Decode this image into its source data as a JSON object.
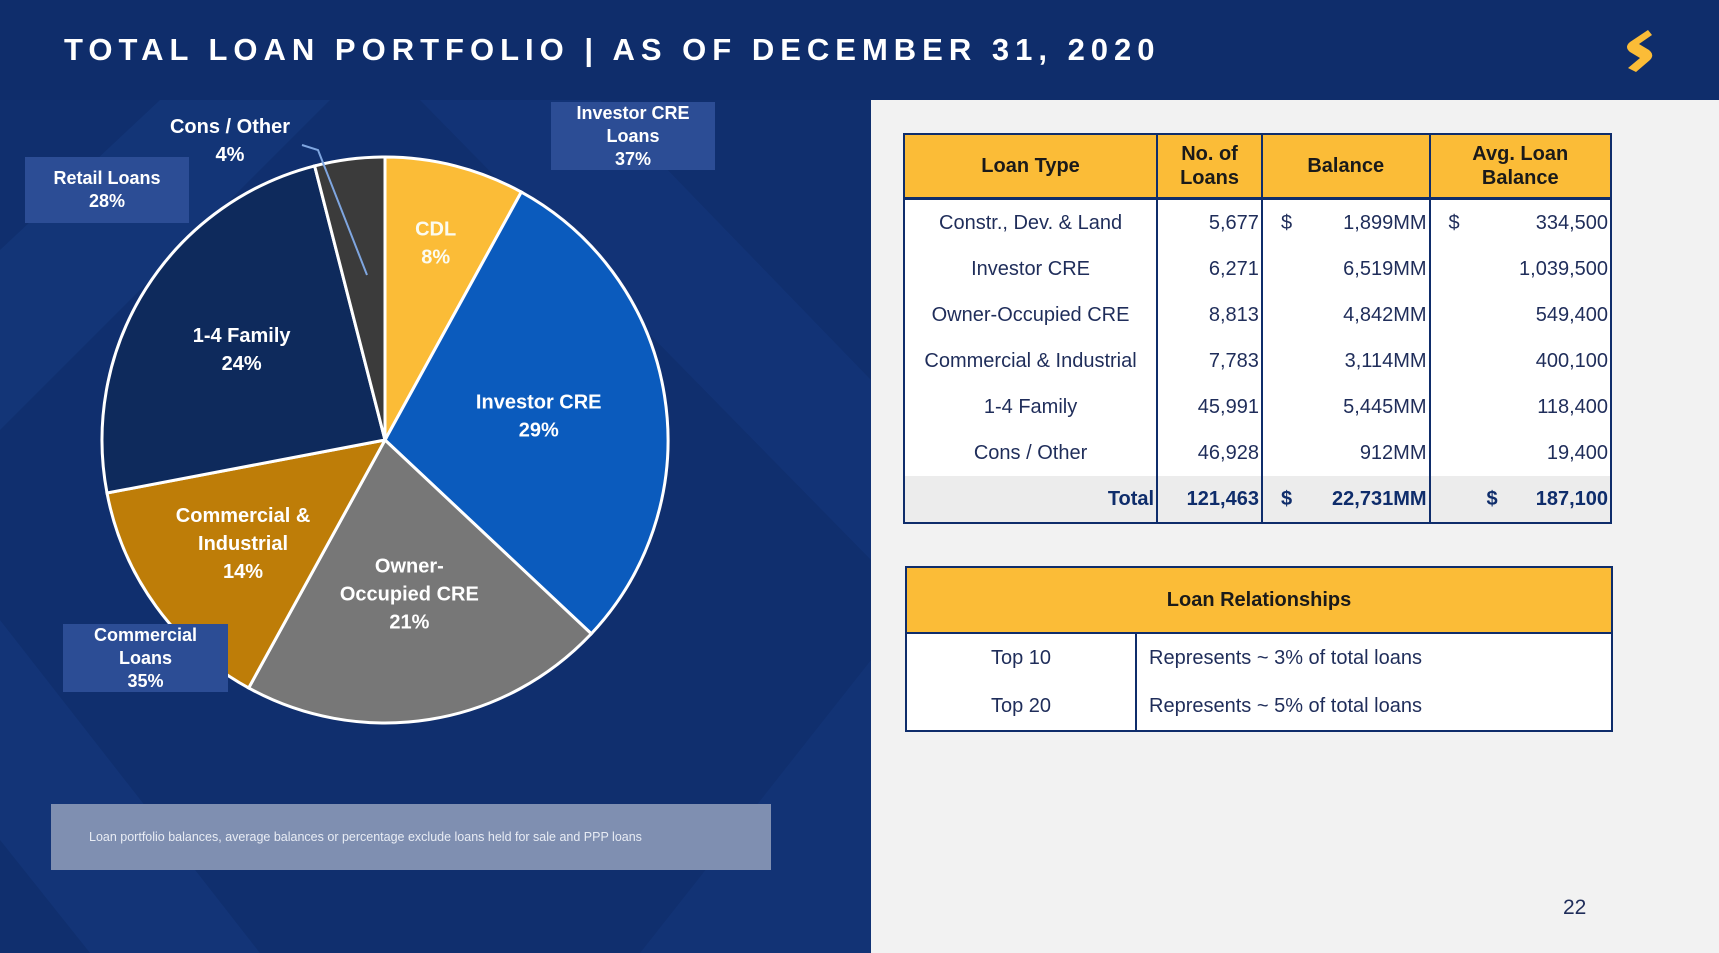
{
  "header": {
    "title": "TOTAL LOAN PORTFOLIO | AS OF DECEMBER 31, 2020"
  },
  "colors": {
    "navy": "#102f6e",
    "cdl": "#fbbc37",
    "investor_cre": "#0b5bbd",
    "owner_occupied_cre": "#777777",
    "commercial_industrial": "#be7d08",
    "one_four_family": "#0e2a5c",
    "cons_other": "#3b3b3b"
  },
  "chart_data": {
    "type": "pie",
    "slices": [
      {
        "label": "CDL",
        "value": 8,
        "pct_label": "8%",
        "color": "#fbbc37",
        "text_color": "#fbfbf0"
      },
      {
        "label": "Investor CRE",
        "value": 29,
        "pct_label": "29%",
        "color": "#0b5bbd",
        "text_color": "#ffffff"
      },
      {
        "label": "Owner-Occupied CRE",
        "lines": [
          "Owner-",
          "Occupied CRE"
        ],
        "value": 21,
        "pct_label": "21%",
        "color": "#777777",
        "text_color": "#ffffff"
      },
      {
        "label": "Commercial & Industrial",
        "lines": [
          "Commercial &",
          "Industrial"
        ],
        "value": 14,
        "pct_label": "14%",
        "color": "#be7d08",
        "text_color": "#ffffff"
      },
      {
        "label": "1-4 Family",
        "value": 24,
        "pct_label": "24%",
        "color": "#0e2a5c",
        "text_color": "#ffffff"
      },
      {
        "label": "Cons / Other",
        "value": 4,
        "pct_label": "4%",
        "color": "#3b3b3b",
        "text_color": "#ffffff"
      }
    ],
    "groups": {
      "retail": {
        "lines": [
          "Retail Loans",
          "28%"
        ]
      },
      "investor": {
        "lines": [
          "Investor CRE",
          "Loans",
          "37%"
        ]
      },
      "commercial": {
        "lines": [
          "Commercial",
          "Loans",
          "35%"
        ]
      }
    }
  },
  "footnote": "Loan portfolio balances, average balances or percentage exclude loans held for sale and PPP loans",
  "loan_table": {
    "headers": [
      "Loan Type",
      "No. of Loans",
      "Balance",
      "Avg. Loan Balance"
    ],
    "rows": [
      {
        "type": "Constr., Dev. & Land",
        "count": "5,677",
        "balance": "1,899MM",
        "avg": "334,500"
      },
      {
        "type": "Investor CRE",
        "count": "6,271",
        "balance": "6,519MM",
        "avg": "1,039,500"
      },
      {
        "type": "Owner-Occupied CRE",
        "count": "8,813",
        "balance": "4,842MM",
        "avg": "549,400"
      },
      {
        "type": "Commercial & Industrial",
        "count": "7,783",
        "balance": "3,114MM",
        "avg": "400,100"
      },
      {
        "type": "1-4 Family",
        "count": "45,991",
        "balance": "5,445MM",
        "avg": "118,400"
      },
      {
        "type": "Cons / Other",
        "count": "46,928",
        "balance": "912MM",
        "avg": "19,400"
      }
    ],
    "currency": "$",
    "total": {
      "label": "Total",
      "count": "121,463",
      "balance": "22,731MM",
      "avg": "187,100"
    }
  },
  "relationships": {
    "title": "Loan Relationships",
    "rows": [
      {
        "label": "Top 10",
        "value": "Represents ~ 3% of total loans"
      },
      {
        "label": "Top 20",
        "value": "Represents ~ 5% of total loans"
      }
    ]
  },
  "page_number": "22"
}
